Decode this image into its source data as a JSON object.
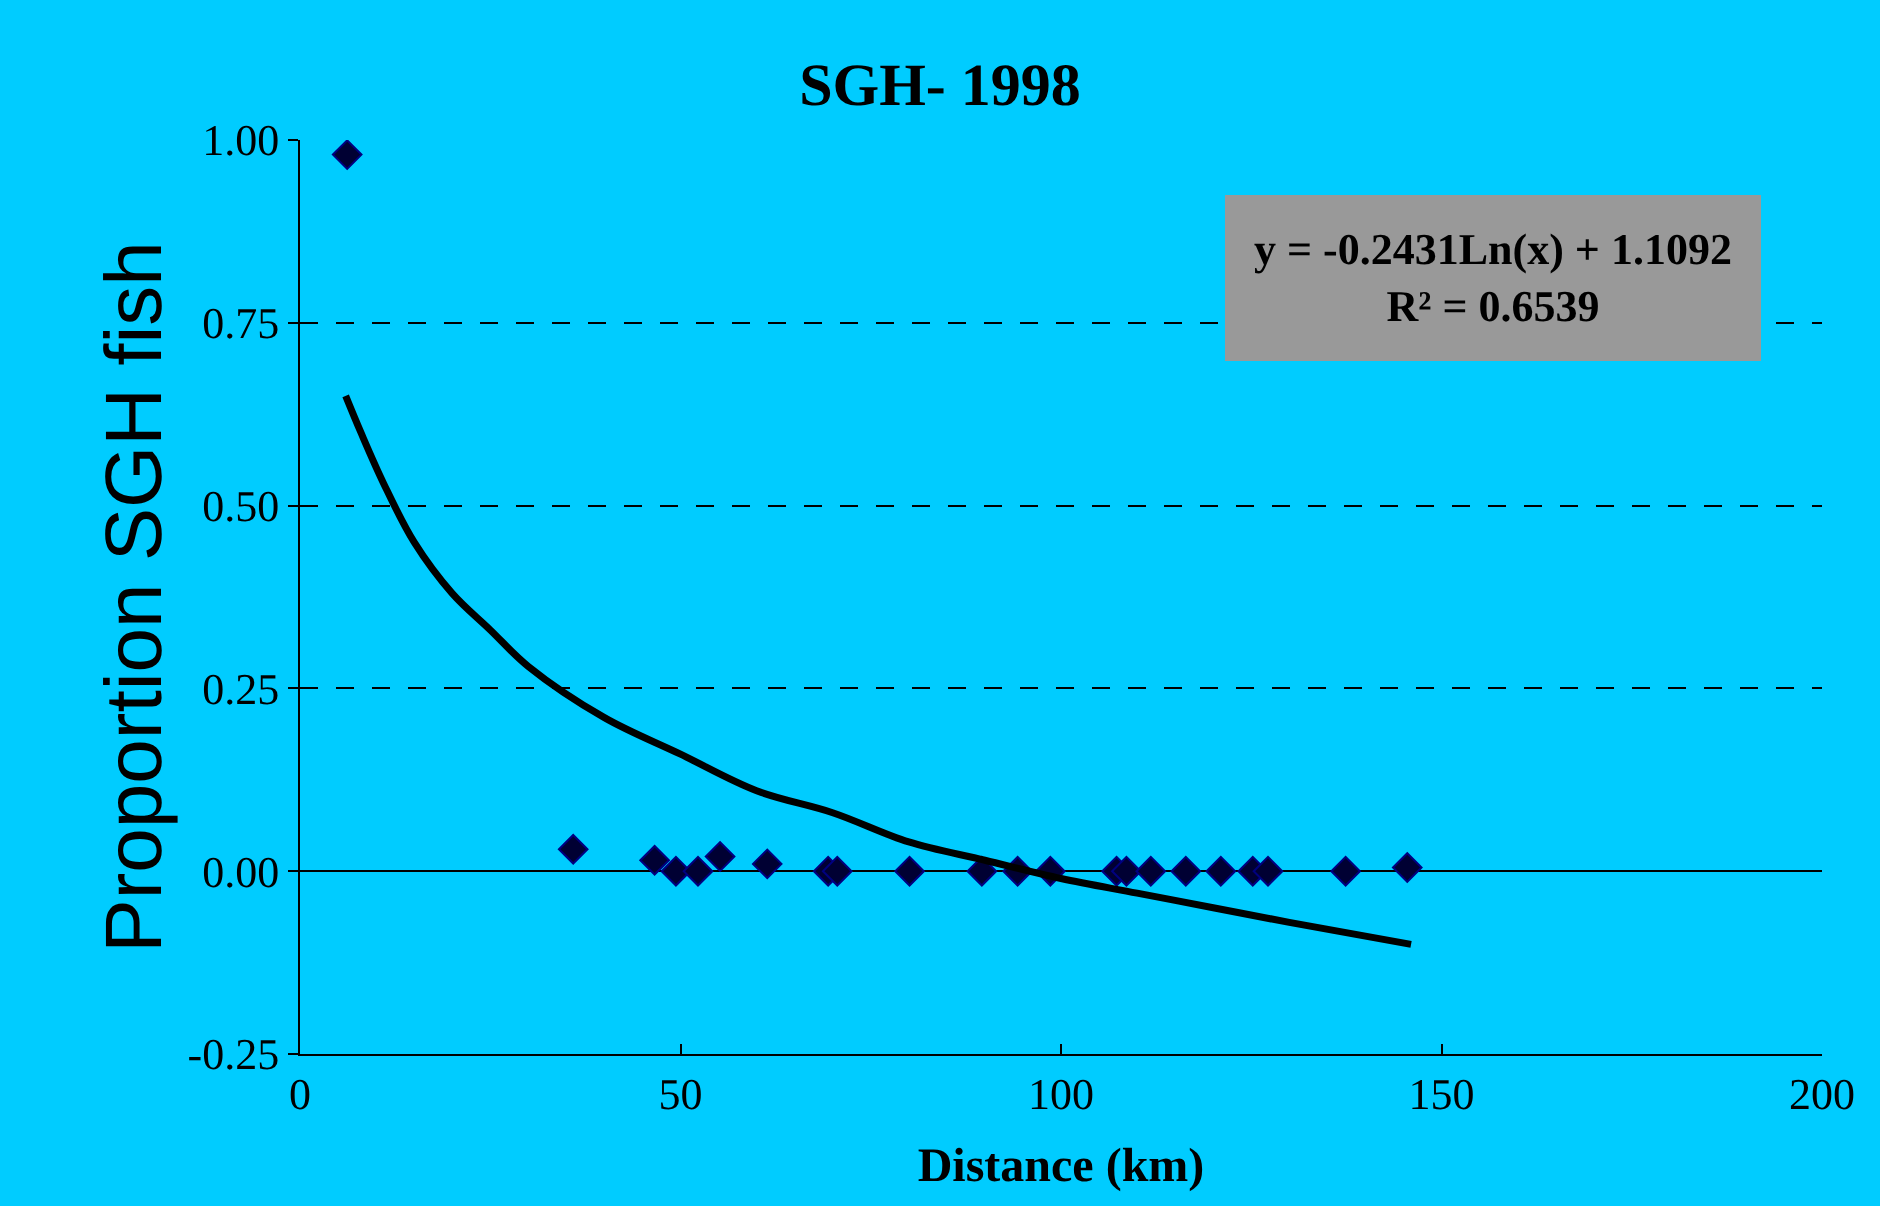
{
  "chart_data": {
    "type": "scatter",
    "title": "SGH- 1998",
    "xlabel": "Distance (km)",
    "ylabel": "Proportion SGH fish",
    "xlim": [
      0,
      200
    ],
    "xticks": [
      0,
      50,
      100,
      150,
      200
    ],
    "ylim": [
      -0.25,
      1.0
    ],
    "yticks": [
      -0.25,
      {
        "value": 0,
        "label": "0.00"
      },
      0.25,
      {
        "value": 0.5,
        "label": "0.50"
      },
      0.75,
      {
        "value": 1,
        "label": "1.00"
      }
    ],
    "grid": "y",
    "marker": "diamond",
    "series": [
      {
        "color": "#000033",
        "x": [
          6.2,
          35.9,
          46.6,
          49.4,
          52.3,
          55.2,
          61.4,
          69.4,
          70.6,
          80.1,
          89.6,
          94.3,
          98.6,
          107.3,
          108.6,
          111.8,
          116.4,
          121,
          125.2,
          127.2,
          137.4,
          145.5
        ],
        "values": [
          0.98,
          0.03,
          0.015,
          0,
          0,
          0.02,
          0.01,
          0,
          0,
          0,
          0,
          0,
          0,
          0,
          0,
          0,
          0,
          0,
          0,
          0,
          0,
          0.005
        ]
      },
      {
        "type": "line",
        "marker": "none",
        "color": "#000000",
        "x": [
          6,
          8,
          11,
          15,
          20,
          25,
          30,
          40,
          50,
          60,
          70,
          80,
          90,
          100,
          110,
          120,
          130,
          146
        ],
        "values": [
          0.65,
          0.6,
          0.53,
          0.45,
          0.38,
          0.33,
          0.28,
          0.21,
          0.16,
          0.11,
          0.08,
          0.04,
          0.015,
          -0.01,
          -0.03,
          -0.05,
          -0.07,
          -0.1
        ]
      }
    ],
    "annotations": [
      "y = -0.2431Ln(x) + 1.1092\nR² = 0.6539"
    ]
  }
}
